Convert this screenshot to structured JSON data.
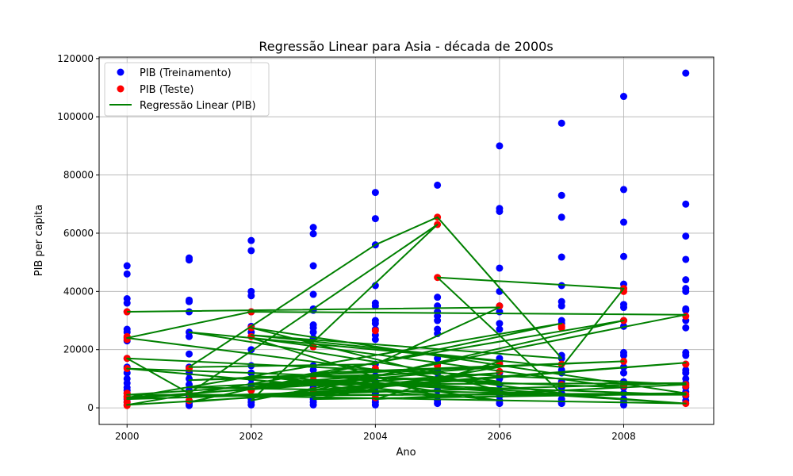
{
  "chart_data": {
    "type": "scatter",
    "title": "Regressão Linear para Asia - década de 2000s",
    "xlabel": "Ano",
    "ylabel": "PIB per capita",
    "xlim": [
      1999.55,
      2009.45
    ],
    "ylim": [
      -5700,
      120500
    ],
    "xticks": [
      2000,
      2002,
      2004,
      2006,
      2008
    ],
    "yticks": [
      0,
      20000,
      40000,
      60000,
      80000,
      100000,
      120000
    ],
    "grid": true,
    "legend_position": "top-left",
    "colors": {
      "train": "#0000ff",
      "test": "#ff0000",
      "regression": "#008000",
      "grid": "#b0b0b0"
    },
    "series": [
      {
        "name": "PIB (Treinamento)",
        "kind": "scatter",
        "points": [
          [
            2000,
            48800
          ],
          [
            2000,
            46000
          ],
          [
            2000,
            37500
          ],
          [
            2000,
            36000
          ],
          [
            2000,
            33000
          ],
          [
            2000,
            27000
          ],
          [
            2000,
            26000
          ],
          [
            2000,
            24000
          ],
          [
            2000,
            23000
          ],
          [
            2000,
            17000
          ],
          [
            2000,
            14000
          ],
          [
            2000,
            12000
          ],
          [
            2000,
            10000
          ],
          [
            2000,
            8500
          ],
          [
            2000,
            7000
          ],
          [
            2000,
            6000
          ],
          [
            2000,
            5000
          ],
          [
            2000,
            4000
          ],
          [
            2000,
            3000
          ],
          [
            2000,
            2000
          ],
          [
            2000,
            1000
          ],
          [
            2001,
            51500
          ],
          [
            2001,
            50800
          ],
          [
            2001,
            37000
          ],
          [
            2001,
            36500
          ],
          [
            2001,
            33000
          ],
          [
            2001,
            26000
          ],
          [
            2001,
            24500
          ],
          [
            2001,
            18500
          ],
          [
            2001,
            14000
          ],
          [
            2001,
            12000
          ],
          [
            2001,
            10000
          ],
          [
            2001,
            8000
          ],
          [
            2001,
            6000
          ],
          [
            2001,
            4000
          ],
          [
            2001,
            2500
          ],
          [
            2001,
            1500
          ],
          [
            2001,
            800
          ],
          [
            2002,
            57500
          ],
          [
            2002,
            54000
          ],
          [
            2002,
            40000
          ],
          [
            2002,
            38500
          ],
          [
            2002,
            33000
          ],
          [
            2002,
            28000
          ],
          [
            2002,
            26000
          ],
          [
            2002,
            20000
          ],
          [
            2002,
            14500
          ],
          [
            2002,
            12000
          ],
          [
            2002,
            10000
          ],
          [
            2002,
            8000
          ],
          [
            2002,
            6000
          ],
          [
            2002,
            4000
          ],
          [
            2002,
            3000
          ],
          [
            2002,
            2000
          ],
          [
            2002,
            1000
          ],
          [
            2003,
            62000
          ],
          [
            2003,
            59800
          ],
          [
            2003,
            48800
          ],
          [
            2003,
            39000
          ],
          [
            2003,
            34000
          ],
          [
            2003,
            33500
          ],
          [
            2003,
            28500
          ],
          [
            2003,
            27500
          ],
          [
            2003,
            26000
          ],
          [
            2003,
            24000
          ],
          [
            2003,
            21000
          ],
          [
            2003,
            14500
          ],
          [
            2003,
            13000
          ],
          [
            2003,
            11000
          ],
          [
            2003,
            9000
          ],
          [
            2003,
            7000
          ],
          [
            2003,
            5000
          ],
          [
            2003,
            3000
          ],
          [
            2003,
            2000
          ],
          [
            2003,
            1000
          ],
          [
            2004,
            74000
          ],
          [
            2004,
            65000
          ],
          [
            2004,
            56000
          ],
          [
            2004,
            42000
          ],
          [
            2004,
            36000
          ],
          [
            2004,
            35000
          ],
          [
            2004,
            30000
          ],
          [
            2004,
            29000
          ],
          [
            2004,
            27000
          ],
          [
            2004,
            25000
          ],
          [
            2004,
            23500
          ],
          [
            2004,
            15000
          ],
          [
            2004,
            13000
          ],
          [
            2004,
            11000
          ],
          [
            2004,
            9000
          ],
          [
            2004,
            7000
          ],
          [
            2004,
            5000
          ],
          [
            2004,
            3000
          ],
          [
            2004,
            2000
          ],
          [
            2004,
            1000
          ],
          [
            2005,
            76500
          ],
          [
            2005,
            38000
          ],
          [
            2005,
            35000
          ],
          [
            2005,
            33000
          ],
          [
            2005,
            31500
          ],
          [
            2005,
            30000
          ],
          [
            2005,
            27000
          ],
          [
            2005,
            25500
          ],
          [
            2005,
            17000
          ],
          [
            2005,
            15000
          ],
          [
            2005,
            13000
          ],
          [
            2005,
            12000
          ],
          [
            2005,
            10000
          ],
          [
            2005,
            8000
          ],
          [
            2005,
            6000
          ],
          [
            2005,
            4000
          ],
          [
            2005,
            2500
          ],
          [
            2005,
            1500
          ],
          [
            2006,
            90000
          ],
          [
            2006,
            68500
          ],
          [
            2006,
            67500
          ],
          [
            2006,
            48000
          ],
          [
            2006,
            40000
          ],
          [
            2006,
            35000
          ],
          [
            2006,
            33000
          ],
          [
            2006,
            29000
          ],
          [
            2006,
            27000
          ],
          [
            2006,
            17000
          ],
          [
            2006,
            16000
          ],
          [
            2006,
            12000
          ],
          [
            2006,
            10000
          ],
          [
            2006,
            8000
          ],
          [
            2006,
            6000
          ],
          [
            2006,
            4000
          ],
          [
            2006,
            2500
          ],
          [
            2006,
            1500
          ],
          [
            2007,
            97800
          ],
          [
            2007,
            73000
          ],
          [
            2007,
            65500
          ],
          [
            2007,
            51800
          ],
          [
            2007,
            42000
          ],
          [
            2007,
            36500
          ],
          [
            2007,
            35000
          ],
          [
            2007,
            30000
          ],
          [
            2007,
            29000
          ],
          [
            2007,
            18000
          ],
          [
            2007,
            17000
          ],
          [
            2007,
            13000
          ],
          [
            2007,
            12000
          ],
          [
            2007,
            9000
          ],
          [
            2007,
            7000
          ],
          [
            2007,
            5000
          ],
          [
            2007,
            3000
          ],
          [
            2007,
            2000
          ],
          [
            2007,
            1500
          ],
          [
            2008,
            107000
          ],
          [
            2008,
            75000
          ],
          [
            2008,
            63800
          ],
          [
            2008,
            52000
          ],
          [
            2008,
            42500
          ],
          [
            2008,
            41000
          ],
          [
            2008,
            35500
          ],
          [
            2008,
            34500
          ],
          [
            2008,
            30000
          ],
          [
            2008,
            28000
          ],
          [
            2008,
            19000
          ],
          [
            2008,
            18000
          ],
          [
            2008,
            14000
          ],
          [
            2008,
            12000
          ],
          [
            2008,
            9000
          ],
          [
            2008,
            7000
          ],
          [
            2008,
            5000
          ],
          [
            2008,
            3000
          ],
          [
            2008,
            2000
          ],
          [
            2008,
            1000
          ],
          [
            2009,
            115000
          ],
          [
            2009,
            70000
          ],
          [
            2009,
            59000
          ],
          [
            2009,
            51000
          ],
          [
            2009,
            44000
          ],
          [
            2009,
            41000
          ],
          [
            2009,
            40000
          ],
          [
            2009,
            34000
          ],
          [
            2009,
            33500
          ],
          [
            2009,
            30000
          ],
          [
            2009,
            27500
          ],
          [
            2009,
            19000
          ],
          [
            2009,
            18000
          ],
          [
            2009,
            15000
          ],
          [
            2009,
            13000
          ],
          [
            2009,
            12000
          ],
          [
            2009,
            10000
          ],
          [
            2009,
            8500
          ],
          [
            2009,
            7000
          ],
          [
            2009,
            5500
          ],
          [
            2009,
            4000
          ],
          [
            2009,
            2500
          ]
        ]
      },
      {
        "name": "PIB (Teste)",
        "kind": "scatter",
        "points": [
          [
            2000,
            33000
          ],
          [
            2000,
            24500
          ],
          [
            2000,
            23500
          ],
          [
            2000,
            17000
          ],
          [
            2000,
            13500
          ],
          [
            2000,
            5000
          ],
          [
            2000,
            4000
          ],
          [
            2000,
            3500
          ],
          [
            2000,
            2000
          ],
          [
            2000,
            800
          ],
          [
            2001,
            13500
          ],
          [
            2001,
            5000
          ],
          [
            2001,
            2500
          ],
          [
            2002,
            33000
          ],
          [
            2002,
            27500
          ],
          [
            2002,
            24500
          ],
          [
            2002,
            6000
          ],
          [
            2003,
            21000
          ],
          [
            2003,
            11000
          ],
          [
            2003,
            9500
          ],
          [
            2003,
            6000
          ],
          [
            2004,
            26500
          ],
          [
            2004,
            13500
          ],
          [
            2004,
            3500
          ],
          [
            2005,
            65500
          ],
          [
            2005,
            63000
          ],
          [
            2005,
            44800
          ],
          [
            2005,
            14500
          ],
          [
            2006,
            35000
          ],
          [
            2006,
            15000
          ],
          [
            2006,
            12500
          ],
          [
            2007,
            28000
          ],
          [
            2007,
            27500
          ],
          [
            2007,
            15000
          ],
          [
            2007,
            8000
          ],
          [
            2008,
            41000
          ],
          [
            2008,
            40000
          ],
          [
            2008,
            30000
          ],
          [
            2008,
            16000
          ],
          [
            2008,
            7500
          ],
          [
            2009,
            31500
          ],
          [
            2009,
            15000
          ],
          [
            2009,
            8000
          ],
          [
            2009,
            7500
          ],
          [
            2009,
            4500
          ],
          [
            2009,
            1500
          ]
        ]
      },
      {
        "name": "Regressão Linear (PIB)",
        "kind": "line",
        "points": [
          [
            2000,
            33000
          ],
          [
            2006,
            34500
          ],
          [
            2004,
            15000
          ],
          [
            2001,
            14000
          ],
          [
            2004,
            56000
          ],
          [
            2005,
            65500
          ],
          [
            2007,
            17000
          ],
          [
            2002,
            25000
          ],
          [
            2007,
            14000
          ],
          [
            2008,
            41000
          ],
          [
            2005,
            44800
          ],
          [
            2007,
            5000
          ],
          [
            2000,
            24000
          ],
          [
            2002,
            33000
          ],
          [
            2009,
            32000
          ],
          [
            2002,
            2500
          ],
          [
            2005,
            63000
          ],
          [
            2001,
            5000
          ],
          [
            2000,
            17000
          ],
          [
            2009,
            8000
          ],
          [
            2004,
            3000
          ],
          [
            2006,
            16000
          ],
          [
            2001,
            26000
          ],
          [
            2006,
            9000
          ],
          [
            2000,
            13500
          ],
          [
            2005,
            4000
          ],
          [
            2002,
            24000
          ],
          [
            2008,
            7000
          ],
          [
            2003,
            11000
          ],
          [
            2009,
            1500
          ],
          [
            2002,
            4000
          ],
          [
            2006,
            12000
          ],
          [
            2000,
            3500
          ],
          [
            2007,
            29000
          ],
          [
            2001,
            2000
          ],
          [
            2009,
            15500
          ],
          [
            2003,
            6000
          ],
          [
            2008,
            30000
          ],
          [
            2000,
            1000
          ],
          [
            2004,
            6000
          ],
          [
            2001,
            4000
          ],
          [
            2009,
            5000
          ],
          [
            2002,
            27500
          ],
          [
            2006,
            6000
          ],
          [
            2003,
            9000
          ],
          [
            2009,
            4500
          ],
          [
            2000,
            4500
          ],
          [
            2004,
            10000
          ],
          [
            2001,
            7000
          ],
          [
            2008,
            4500
          ],
          [
            2003,
            3000
          ],
          [
            2006,
            14000
          ],
          [
            2002,
            8000
          ],
          [
            2009,
            8500
          ],
          [
            2000,
            3000
          ],
          [
            2005,
            12000
          ],
          [
            2001,
            9500
          ],
          [
            2008,
            16000
          ],
          [
            2003,
            12000
          ],
          [
            2006,
            2500
          ],
          [
            2002,
            11000
          ],
          [
            2009,
            1500
          ]
        ]
      }
    ]
  }
}
